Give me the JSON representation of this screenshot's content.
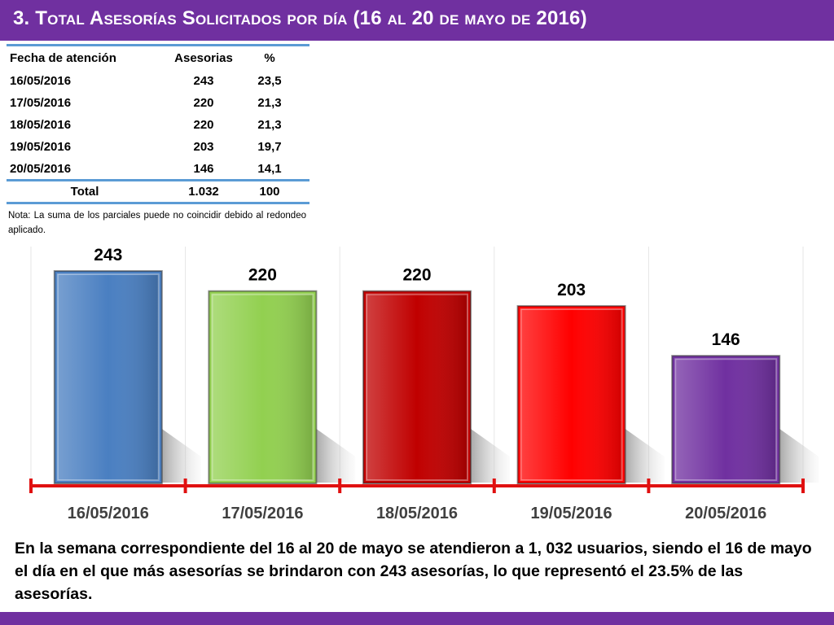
{
  "title": "3. Total Asesorías Solicitados por día (16 al 20 de mayo de 2016)",
  "table": {
    "headers": [
      "Fecha de atención",
      "Asesorias",
      "%"
    ],
    "rows": [
      [
        "16/05/2016",
        "243",
        "23,5"
      ],
      [
        "17/05/2016",
        "220",
        "21,3"
      ],
      [
        "18/05/2016",
        "220",
        "21,3"
      ],
      [
        "19/05/2016",
        "203",
        "19,7"
      ],
      [
        "20/05/2016",
        "146",
        "14,1"
      ]
    ],
    "total": [
      "Total",
      "1.032",
      "100"
    ],
    "note": "Nota: La suma de los parciales puede no coincidir debido al redondeo aplicado."
  },
  "chart_data": {
    "type": "bar",
    "title": "",
    "categories": [
      "16/05/2016",
      "17/05/2016",
      "18/05/2016",
      "19/05/2016",
      "20/05/2016"
    ],
    "values": [
      243,
      220,
      220,
      203,
      146
    ],
    "data_labels": [
      "243",
      "220",
      "220",
      "203",
      "146"
    ],
    "ylim": [
      0,
      270
    ],
    "grid": "vertical",
    "colors": [
      "#4a7fc1",
      "#92d050",
      "#c00000",
      "#ff0000",
      "#7030a0"
    ],
    "axis_color": "#e01010"
  },
  "summary": "En la semana correspondiente del 16 al 20 de mayo se  atendieron a 1, 032 usuarios, siendo el 16 de mayo el día en el que más asesorías se brindaron con 243 asesorías, lo que representó el 23.5% de las asesorías.",
  "colors": {
    "title_bar": "#7030a0",
    "table_rule": "#5b9bd5"
  }
}
